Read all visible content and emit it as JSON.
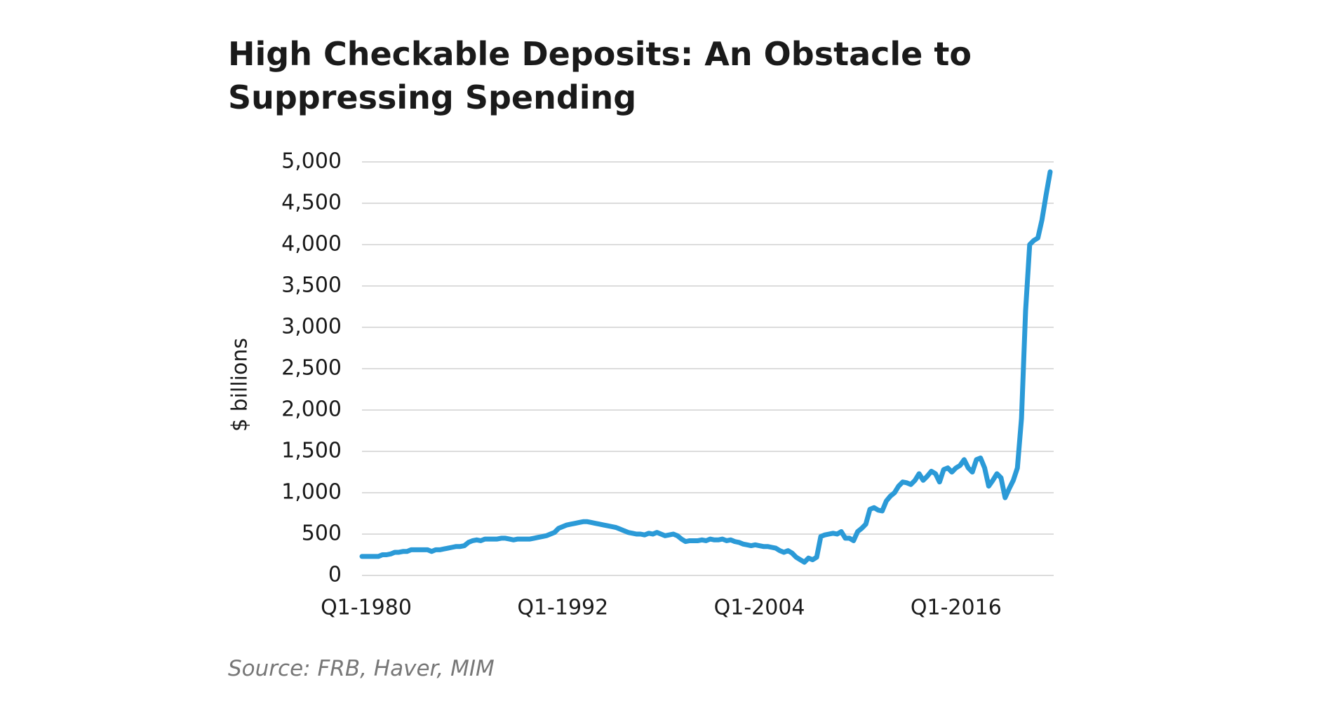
{
  "chart_data": {
    "type": "line",
    "title": [
      "High Checkable Deposits: An Obstacle to",
      "Suppressing Spending"
    ],
    "y_label": "$ billions",
    "source": "Source: FRB, Haver, MIM",
    "color": "#2b9ad7",
    "grid": true,
    "ylim": [
      0,
      5000
    ],
    "yticks": [
      0,
      500,
      {
        "value": 1000,
        "label": "1,000"
      },
      {
        "value": 1500,
        "label": "1,500"
      },
      {
        "value": 2000,
        "label": "2,000"
      },
      {
        "value": 2500,
        "label": "2,500"
      },
      {
        "value": 3000,
        "label": "3,000"
      },
      {
        "value": 3500,
        "label": "3,500"
      },
      {
        "value": 4000,
        "label": "4,000"
      },
      {
        "value": 4500,
        "label": "4,500"
      },
      {
        "value": 5000,
        "label": "5,000"
      }
    ],
    "categories": [
      "Q1-1980",
      null,
      null,
      null,
      null,
      null,
      null,
      null,
      null,
      null,
      null,
      null,
      null,
      null,
      null,
      null,
      null,
      null,
      null,
      null,
      null,
      null,
      null,
      null,
      null,
      null,
      null,
      null,
      null,
      null,
      null,
      null,
      null,
      null,
      null,
      null,
      null,
      null,
      null,
      null,
      null,
      null,
      null,
      null,
      null,
      null,
      null,
      null,
      "Q1-1992",
      null,
      null,
      null,
      null,
      null,
      null,
      null,
      null,
      null,
      null,
      null,
      null,
      null,
      null,
      null,
      null,
      null,
      null,
      null,
      null,
      null,
      null,
      null,
      null,
      null,
      null,
      null,
      null,
      null,
      null,
      null,
      null,
      null,
      null,
      null,
      null,
      null,
      null,
      null,
      null,
      null,
      null,
      null,
      null,
      null,
      null,
      null,
      "Q1-2004",
      null,
      null,
      null,
      null,
      null,
      null,
      null,
      null,
      null,
      null,
      null,
      null,
      null,
      null,
      null,
      null,
      null,
      null,
      null,
      null,
      null,
      null,
      null,
      null,
      null,
      null,
      null,
      null,
      null,
      null,
      null,
      null,
      null,
      null,
      null,
      null,
      null,
      null,
      null,
      null,
      null,
      null,
      null,
      null,
      null,
      null,
      null,
      "Q1-2016",
      null,
      null,
      null,
      null,
      null,
      null,
      null,
      null,
      null,
      null,
      null,
      null,
      null,
      null,
      null,
      null,
      null,
      null,
      null,
      null,
      null,
      null,
      null,
      null
    ],
    "values": [
      230,
      230,
      230,
      230,
      230,
      250,
      250,
      260,
      280,
      280,
      290,
      290,
      310,
      310,
      310,
      310,
      310,
      290,
      310,
      310,
      320,
      330,
      340,
      350,
      350,
      360,
      400,
      420,
      430,
      420,
      440,
      440,
      440,
      440,
      450,
      450,
      440,
      430,
      440,
      440,
      440,
      440,
      450,
      460,
      470,
      480,
      500,
      520,
      570,
      590,
      610,
      620,
      630,
      640,
      650,
      650,
      640,
      630,
      620,
      610,
      600,
      590,
      580,
      560,
      540,
      520,
      510,
      500,
      500,
      490,
      510,
      500,
      520,
      500,
      480,
      490,
      500,
      480,
      440,
      410,
      420,
      420,
      420,
      430,
      420,
      440,
      430,
      430,
      440,
      420,
      430,
      410,
      400,
      380,
      370,
      360,
      370,
      360,
      350,
      350,
      340,
      330,
      300,
      280,
      300,
      270,
      220,
      190,
      160,
      210,
      190,
      220,
      470,
      490,
      500,
      510,
      500,
      530,
      450,
      450,
      420,
      530,
      570,
      620,
      800,
      820,
      790,
      780,
      900,
      960,
      1000,
      1080,
      1130,
      1120,
      1100,
      1150,
      1230,
      1150,
      1200,
      1260,
      1230,
      1130,
      1280,
      1300,
      1250,
      1300,
      1330,
      1400,
      1300,
      1250,
      1400,
      1420,
      1300,
      1080,
      1150,
      1230,
      1180,
      940,
      1050,
      1150,
      1300,
      1900,
      3200,
      4000,
      4050,
      4080,
      4300,
      4600,
      4880
    ]
  }
}
